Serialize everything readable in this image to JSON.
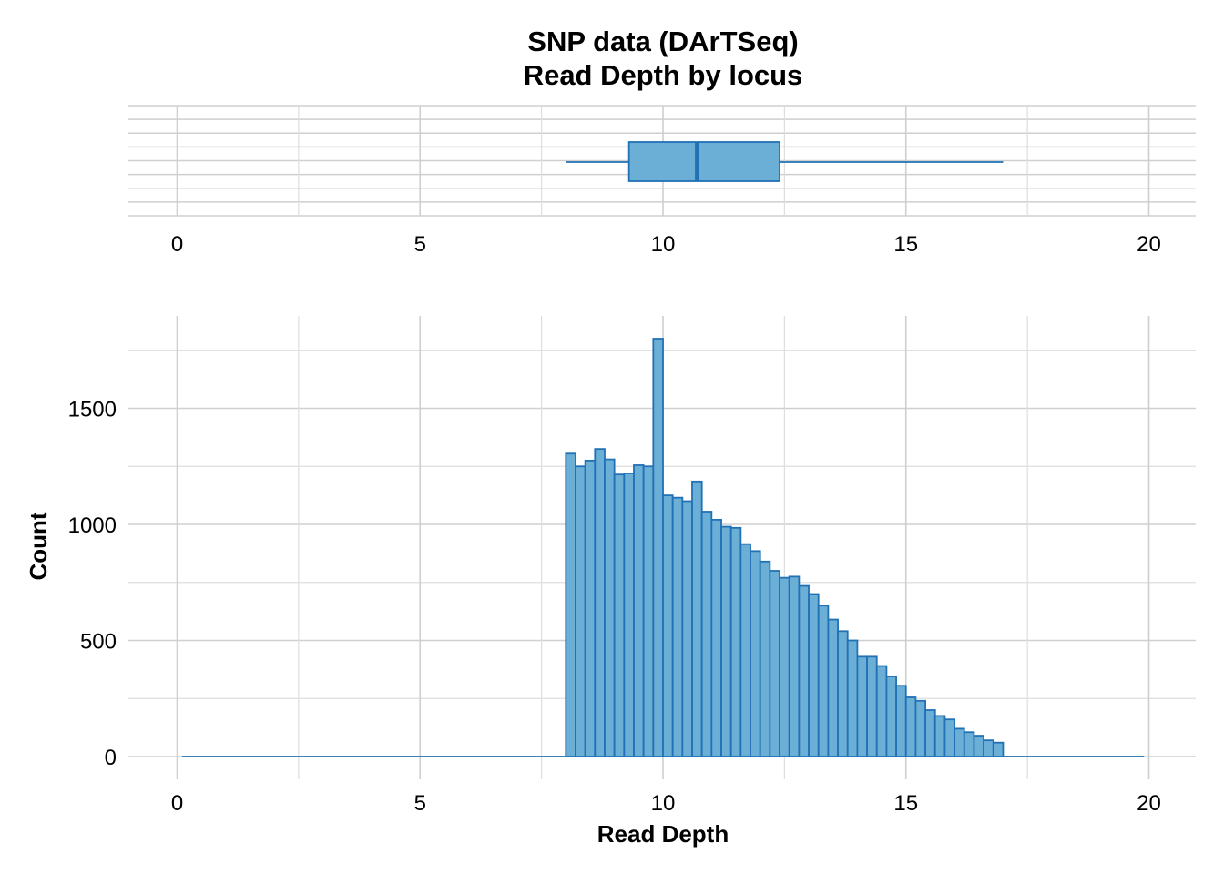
{
  "chart_data": {
    "title_line1": "SNP data (DArTSeq)",
    "title_line2": "Read Depth by locus",
    "colors": {
      "fill": "#6BAED6",
      "stroke": "#2171B5",
      "median": "#2171B5",
      "grid": "#cfcfcf"
    },
    "boxplot": {
      "type": "boxplot",
      "xlim": [
        0,
        20
      ],
      "x_ticks": [
        "0",
        "5",
        "10",
        "15",
        "20"
      ],
      "whisker_low": 8.0,
      "q1": 9.3,
      "median": 10.7,
      "q3": 12.4,
      "whisker_high": 17.0
    },
    "histogram": {
      "type": "bar",
      "xlabel": "Read Depth",
      "ylabel": "Count",
      "xlim": [
        0,
        20
      ],
      "ylim": [
        0,
        1800
      ],
      "x_ticks": [
        "0",
        "5",
        "10",
        "15",
        "20"
      ],
      "y_ticks": [
        "0",
        "500",
        "1000",
        "1500"
      ],
      "range_start": 0.1,
      "range_end": 19.9,
      "bin_width": 0.2,
      "bin_starts": [
        8.0,
        8.2,
        8.4,
        8.6,
        8.8,
        9.0,
        9.2,
        9.4,
        9.6,
        9.8,
        10.0,
        10.2,
        10.4,
        10.6,
        10.8,
        11.0,
        11.2,
        11.4,
        11.6,
        11.8,
        12.0,
        12.2,
        12.4,
        12.6,
        12.8,
        13.0,
        13.2,
        13.4,
        13.6,
        13.8,
        14.0,
        14.2,
        14.4,
        14.6,
        14.8,
        15.0,
        15.2,
        15.4,
        15.6,
        15.8,
        16.0,
        16.2,
        16.4,
        16.6,
        16.8
      ],
      "counts": [
        1305,
        1250,
        1275,
        1325,
        1280,
        1215,
        1220,
        1255,
        1250,
        1800,
        1125,
        1115,
        1100,
        1185,
        1055,
        1020,
        990,
        985,
        915,
        885,
        840,
        800,
        770,
        775,
        735,
        700,
        650,
        590,
        540,
        500,
        430,
        430,
        390,
        345,
        305,
        255,
        240,
        200,
        175,
        160,
        120,
        105,
        90,
        70,
        60
      ]
    }
  }
}
